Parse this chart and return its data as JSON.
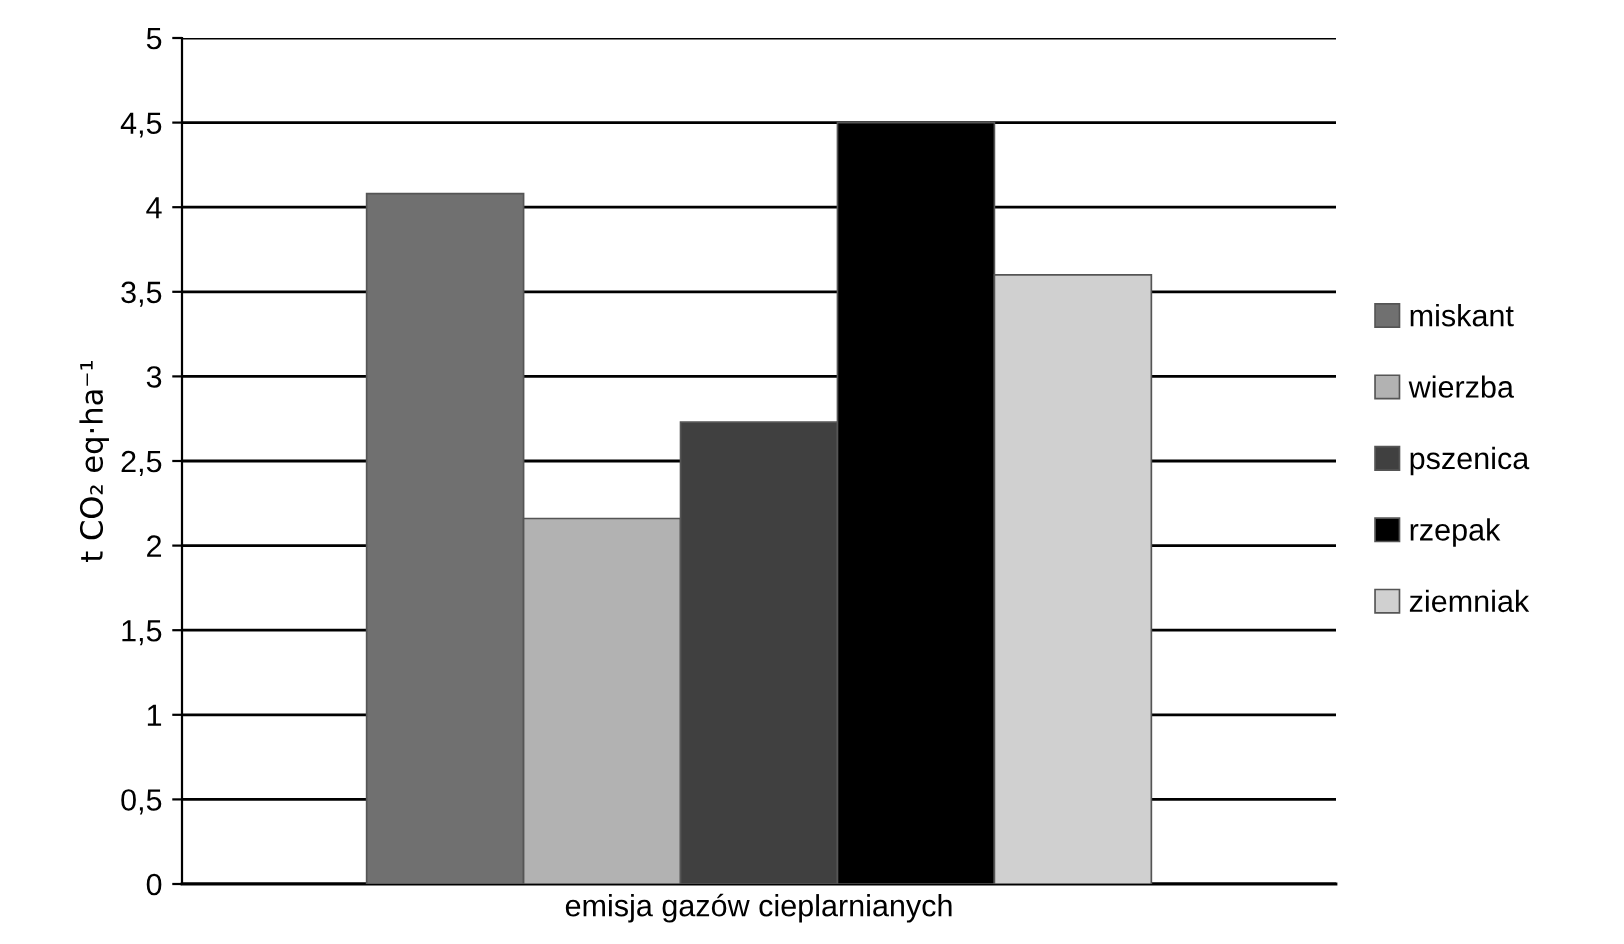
{
  "chart_data": {
    "type": "bar",
    "ylabel": "t CO₂ eq·ha⁻¹",
    "categories": [
      "emisja gazów cieplarnianych"
    ],
    "series": [
      {
        "name": "miskant",
        "color": "#707070",
        "values": [
          4.08
        ]
      },
      {
        "name": "wierzba",
        "color": "#b2b2b2",
        "values": [
          2.16
        ]
      },
      {
        "name": "pszenica",
        "color": "#404040",
        "values": [
          2.73
        ]
      },
      {
        "name": "rzepak",
        "color": "#000000",
        "values": [
          4.5
        ]
      },
      {
        "name": "ziemniak",
        "color": "#d0d0d0",
        "values": [
          3.6
        ]
      }
    ],
    "ylim": [
      0,
      5
    ],
    "yticks": [
      0,
      {
        "value": 0.5,
        "label": "0,5"
      },
      1,
      {
        "value": 1.5,
        "label": "1,5"
      },
      2,
      {
        "value": 2.5,
        "label": "2,5"
      },
      3,
      {
        "value": 3.5,
        "label": "3,5"
      },
      4,
      {
        "value": 4.5,
        "label": "4,5"
      },
      5
    ],
    "grid": "y",
    "legend": "right"
  }
}
